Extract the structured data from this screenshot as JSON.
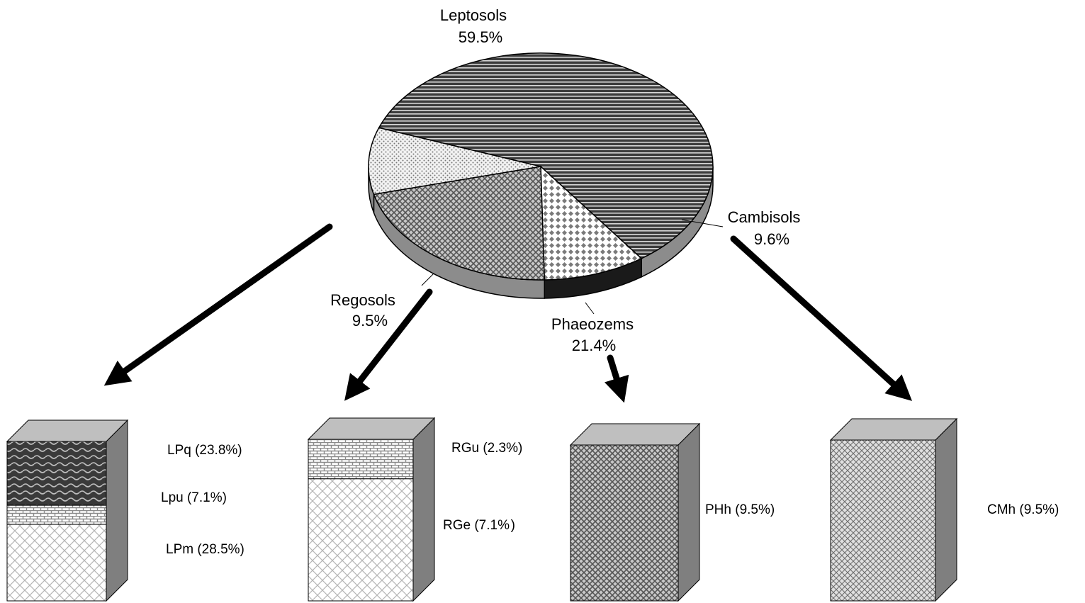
{
  "chart_data": [
    {
      "type": "pie",
      "title": "",
      "slices": [
        {
          "name": "Leptosols",
          "label": "Leptosols",
          "value_label": "59.5%",
          "value": 59.5,
          "pattern": "hstripe"
        },
        {
          "name": "Cambisols",
          "label": "Cambisols",
          "value_label": "9.6%",
          "value": 9.6,
          "pattern": "diamond"
        },
        {
          "name": "Phaeozems",
          "label": "Phaeozems",
          "value_label": "21.4%",
          "value": 21.4,
          "pattern": "crosshatch"
        },
        {
          "name": "Regosols",
          "label": "Regosols",
          "value_label": "9.5%",
          "value": 9.5,
          "pattern": "dots"
        }
      ]
    },
    {
      "type": "bar",
      "stacked": true,
      "title": "",
      "stacks": [
        {
          "parent": "Leptosols",
          "segments": [
            {
              "label": "LPq (23.8%)",
              "value": 23.8,
              "pattern": "wave"
            },
            {
              "label": "Lpu (7.1%)",
              "value": 7.1,
              "pattern": "brick"
            },
            {
              "label": "LPm (28.5%)",
              "value": 28.5,
              "pattern": "lattice"
            }
          ]
        },
        {
          "parent": "Regosols",
          "segments": [
            {
              "label": "RGu (2.3%)",
              "value": 2.3,
              "pattern": "brick"
            },
            {
              "label": "RGe (7.1% )",
              "value": 7.1,
              "pattern": "lattice"
            }
          ]
        },
        {
          "parent": "Phaeozems",
          "segments": [
            {
              "label": "PHh (9.5%)",
              "value": 9.5,
              "pattern": "crosshatch"
            }
          ]
        },
        {
          "parent": "Cambisols",
          "segments": [
            {
              "label": "CMh (9.5%)",
              "value": 9.5,
              "pattern": "checker"
            }
          ]
        }
      ]
    }
  ],
  "colors": {
    "outline": "#000000",
    "side_face": "#7f7f7f",
    "top_face": "#bfbfbf",
    "pie_wall": "#8c8c8c",
    "pie_wall_dark": "#1a1a1a"
  }
}
